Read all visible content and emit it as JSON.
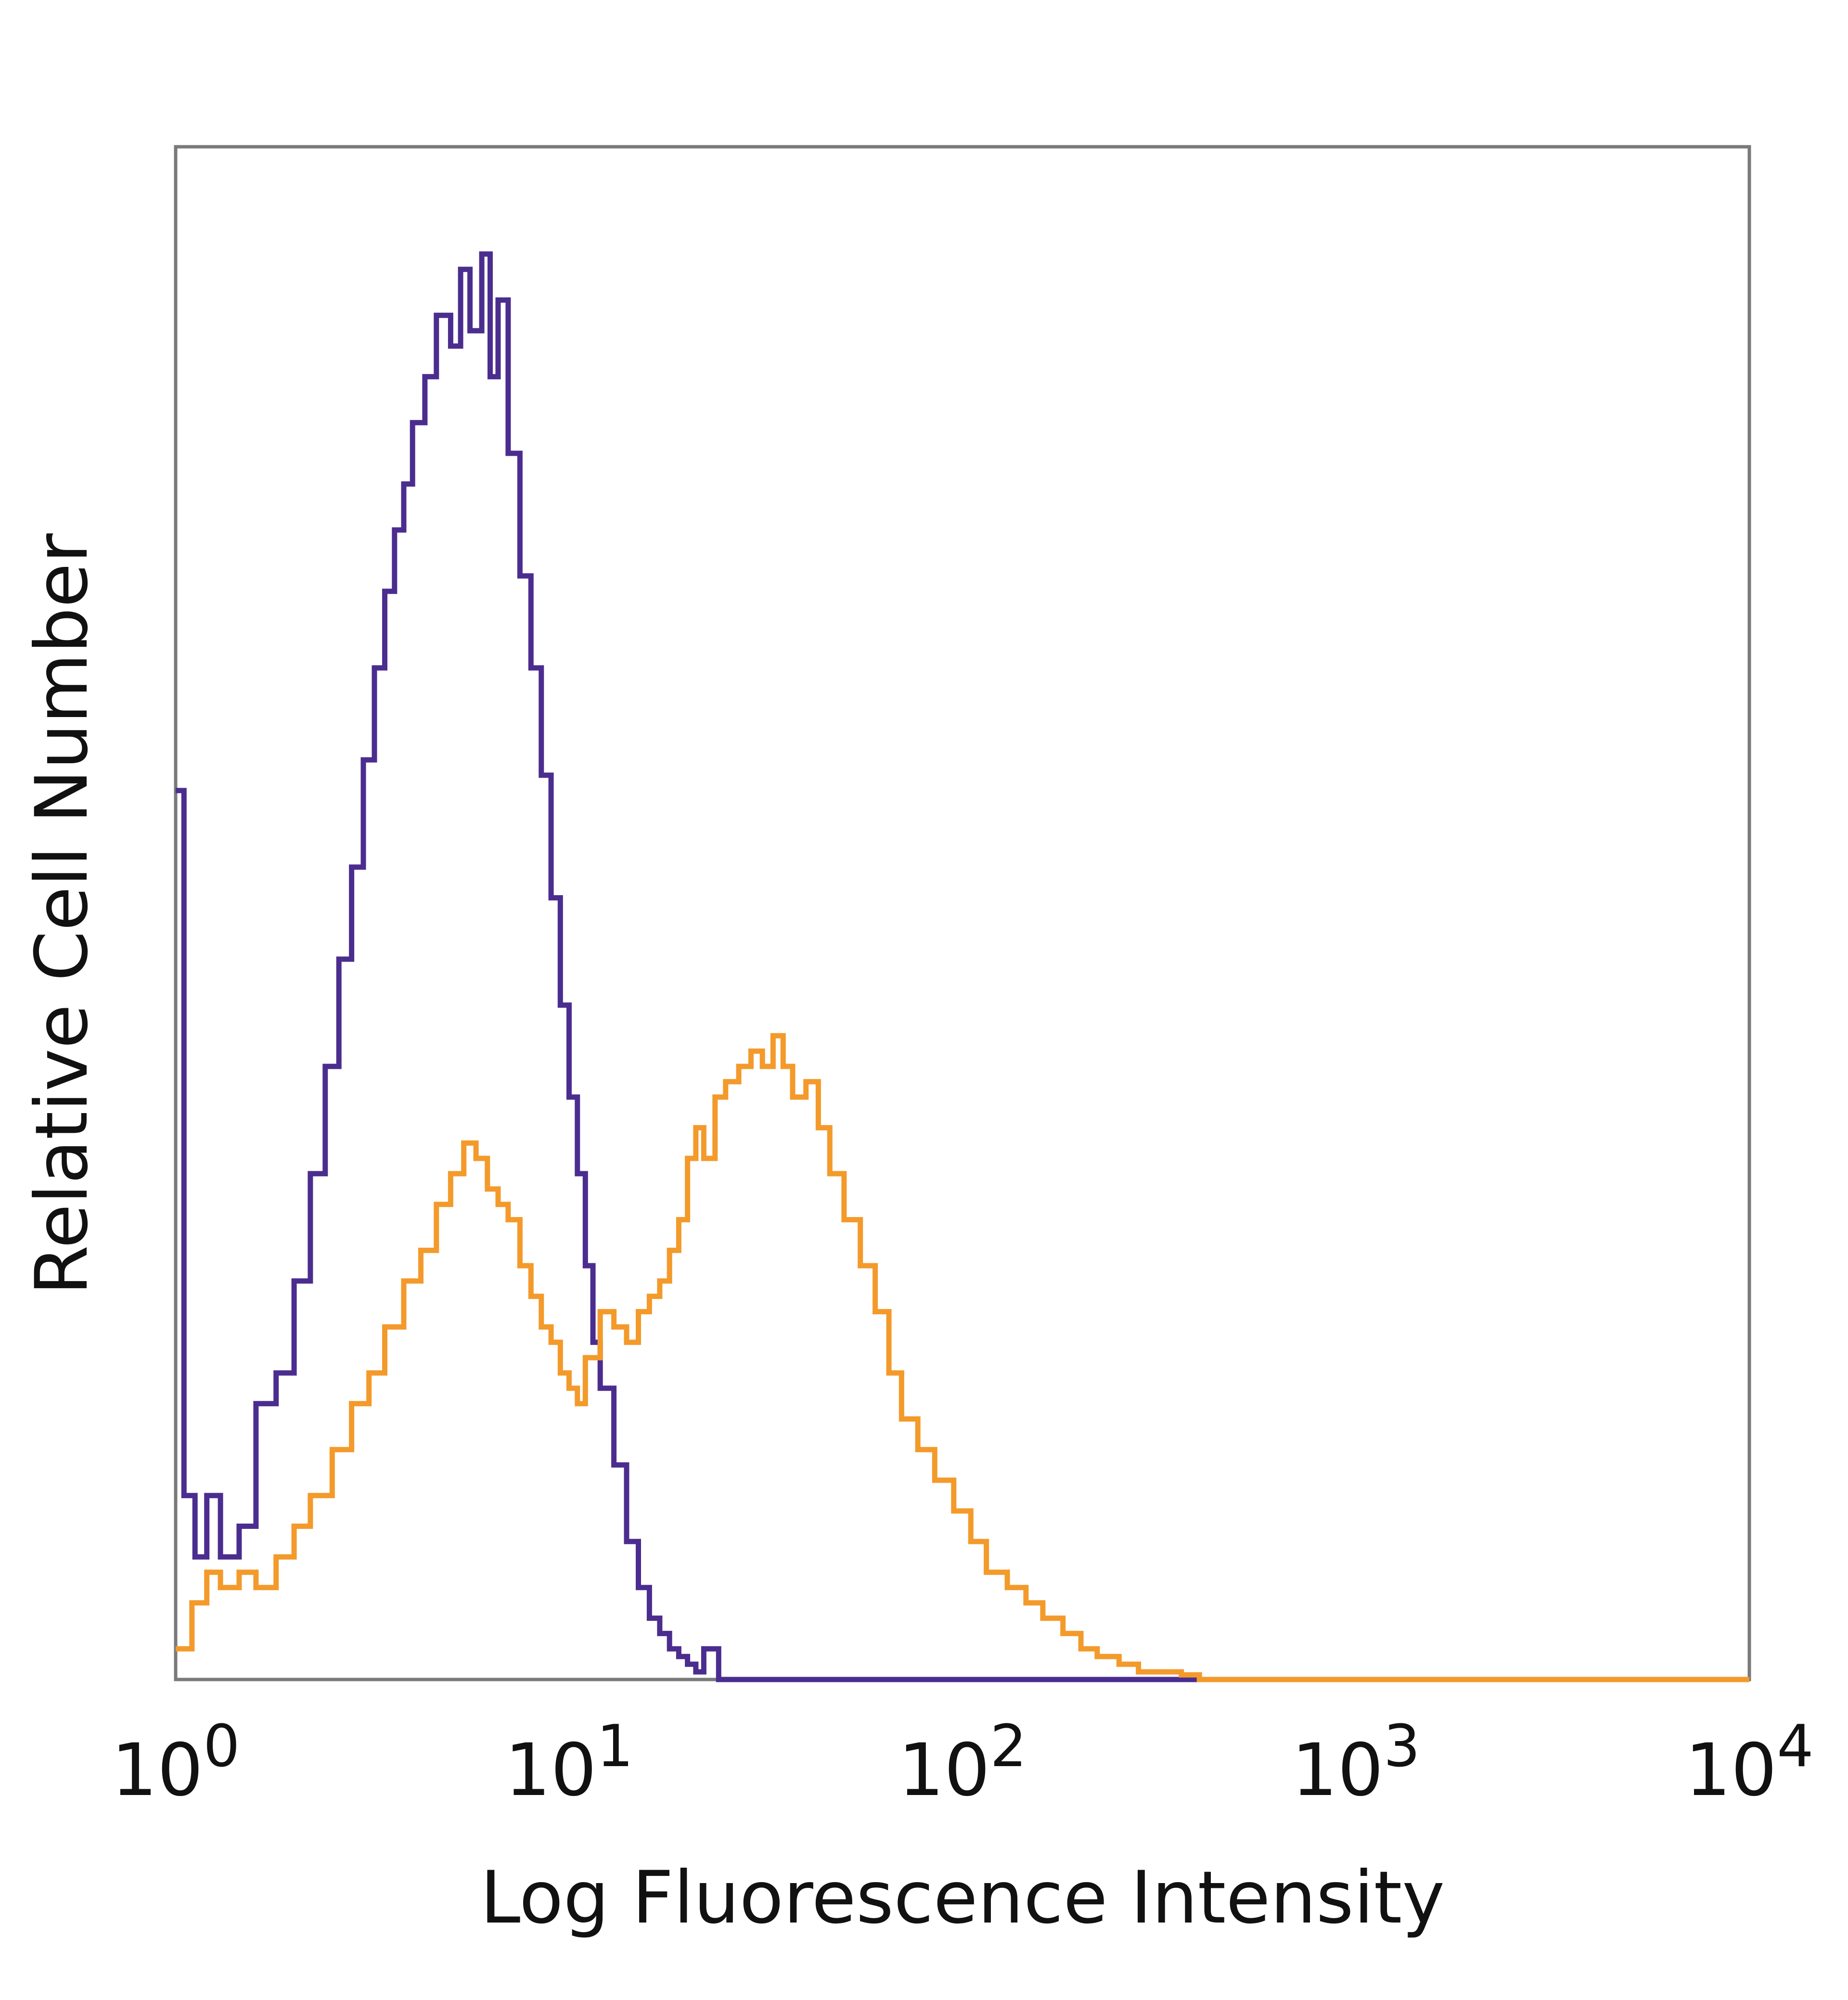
{
  "chart_data": {
    "type": "line",
    "title": "",
    "xlabel": "Log Fluorescence Intensity",
    "ylabel": "Relative Cell Number",
    "x_scale": "log",
    "xlim": [
      1,
      10000
    ],
    "ylim": [
      0,
      1
    ],
    "grid": false,
    "legend": "none",
    "x_ticks": [
      {
        "value": 1,
        "base": "10",
        "exp": "0"
      },
      {
        "value": 10,
        "base": "10",
        "exp": "1"
      },
      {
        "value": 100,
        "base": "10",
        "exp": "2"
      },
      {
        "value": 1000,
        "base": "10",
        "exp": "3"
      },
      {
        "value": 10000,
        "base": "10",
        "exp": "4"
      }
    ],
    "series": [
      {
        "color": "#4b2d8f",
        "x": [
          1.0,
          1.05,
          1.12,
          1.2,
          1.3,
          1.45,
          1.6,
          1.8,
          2.0,
          2.2,
          2.4,
          2.6,
          2.8,
          3.0,
          3.2,
          3.4,
          3.6,
          3.8,
          4.0,
          4.3,
          4.6,
          5.0,
          5.3,
          5.6,
          6.0,
          6.3,
          6.6,
          7.0,
          7.5,
          8.0,
          8.5,
          9.0,
          9.5,
          10.0,
          10.5,
          11.0,
          11.5,
          12.0,
          13.0,
          14.0,
          15.0,
          16.0,
          17.0,
          18.0,
          19.0,
          20.0,
          21.0,
          22.0,
          24.0,
          27.0,
          30.0,
          35.0,
          40.0,
          60.0,
          100.0,
          1000.0,
          10000.0
        ],
        "y": [
          0.58,
          0.12,
          0.08,
          0.12,
          0.08,
          0.1,
          0.18,
          0.2,
          0.26,
          0.33,
          0.4,
          0.47,
          0.53,
          0.6,
          0.66,
          0.71,
          0.75,
          0.78,
          0.82,
          0.85,
          0.89,
          0.87,
          0.92,
          0.88,
          0.93,
          0.85,
          0.9,
          0.8,
          0.72,
          0.66,
          0.59,
          0.51,
          0.44,
          0.38,
          0.33,
          0.27,
          0.22,
          0.19,
          0.14,
          0.09,
          0.06,
          0.04,
          0.03,
          0.02,
          0.015,
          0.01,
          0.005,
          0.02,
          0.0,
          0.0,
          0.0,
          0.0,
          0.0,
          0.0,
          0.0,
          0.0,
          0.0
        ]
      },
      {
        "color": "#f39a2b",
        "x": [
          1.0,
          1.1,
          1.2,
          1.3,
          1.45,
          1.6,
          1.8,
          2.0,
          2.2,
          2.5,
          2.8,
          3.1,
          3.4,
          3.8,
          4.2,
          4.6,
          5.0,
          5.4,
          5.8,
          6.2,
          6.6,
          7.0,
          7.5,
          8.0,
          8.5,
          9.0,
          9.5,
          10.0,
          10.5,
          11.0,
          12.0,
          13.0,
          14.0,
          15.0,
          16.0,
          17.0,
          18.0,
          19.0,
          20.0,
          21.0,
          22.0,
          23.5,
          25.0,
          27.0,
          29.0,
          31.0,
          33.0,
          35.0,
          37.0,
          40.0,
          43.0,
          46.0,
          50.0,
          55.0,
          60.0,
          65.0,
          70.0,
          77.0,
          85.0,
          95.0,
          105.0,
          115.0,
          130.0,
          145.0,
          160.0,
          180.0,
          200.0,
          220.0,
          250.0,
          280.0,
          320.0,
          360.0,
          400.0,
          1000.0,
          10000.0
        ],
        "y": [
          0.02,
          0.05,
          0.07,
          0.06,
          0.07,
          0.06,
          0.08,
          0.1,
          0.12,
          0.15,
          0.18,
          0.2,
          0.23,
          0.26,
          0.28,
          0.31,
          0.33,
          0.35,
          0.34,
          0.32,
          0.31,
          0.3,
          0.27,
          0.25,
          0.23,
          0.22,
          0.2,
          0.19,
          0.18,
          0.21,
          0.24,
          0.23,
          0.22,
          0.24,
          0.25,
          0.26,
          0.28,
          0.3,
          0.34,
          0.36,
          0.34,
          0.38,
          0.39,
          0.4,
          0.41,
          0.4,
          0.42,
          0.4,
          0.38,
          0.39,
          0.36,
          0.33,
          0.3,
          0.27,
          0.24,
          0.2,
          0.17,
          0.15,
          0.13,
          0.11,
          0.09,
          0.07,
          0.06,
          0.05,
          0.04,
          0.03,
          0.02,
          0.015,
          0.01,
          0.005,
          0.005,
          0.003,
          0.0,
          0.0,
          0.0
        ]
      }
    ]
  }
}
